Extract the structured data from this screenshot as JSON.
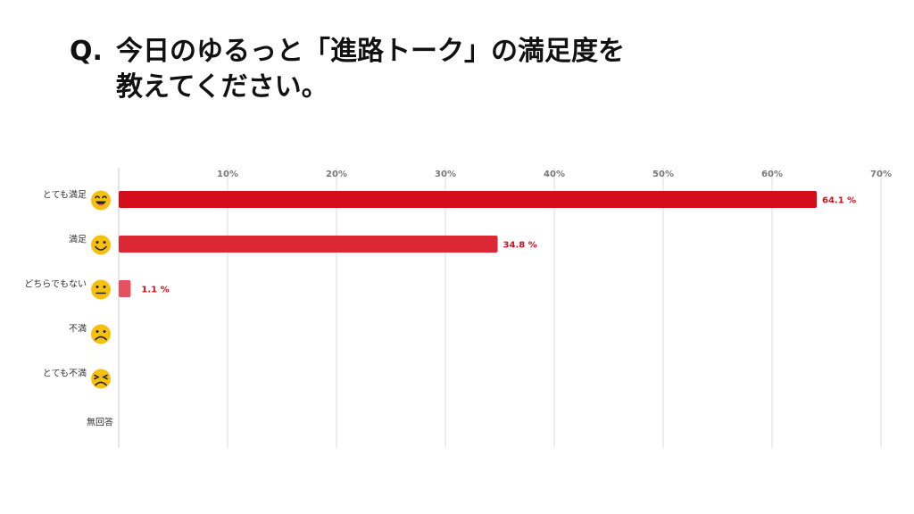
{
  "title": {
    "prefix": "Q.",
    "line1": "今日のゆるっと「進路トーク」の満足度を",
    "line2": "教えてください。"
  },
  "chart_data": {
    "type": "bar",
    "orientation": "horizontal",
    "categories": [
      "とても満足",
      "満足",
      "どちらでもない",
      "不満",
      "とても不満",
      "無回答"
    ],
    "category_icons": [
      "laughing-face-icon",
      "smiling-face-icon",
      "neutral-face-icon",
      "frowning-face-icon",
      "angry-face-icon",
      ""
    ],
    "series": [
      {
        "values": [
          64.1,
          34.8,
          1.1,
          0,
          0,
          0
        ]
      }
    ],
    "value_labels": [
      "64.1 %",
      "34.8 %",
      "1.1 %",
      "",
      "",
      ""
    ],
    "x_ticks": [
      "10%",
      "20%",
      "30%",
      "40%",
      "50%",
      "60%",
      "70%"
    ],
    "xlim": [
      0,
      70
    ],
    "axis_position": "top",
    "grid": true,
    "legend": "none",
    "bar_colors": [
      "#d30d1b",
      "#dc2735",
      "#e4525d"
    ],
    "icon_color": "#f5c00f"
  }
}
